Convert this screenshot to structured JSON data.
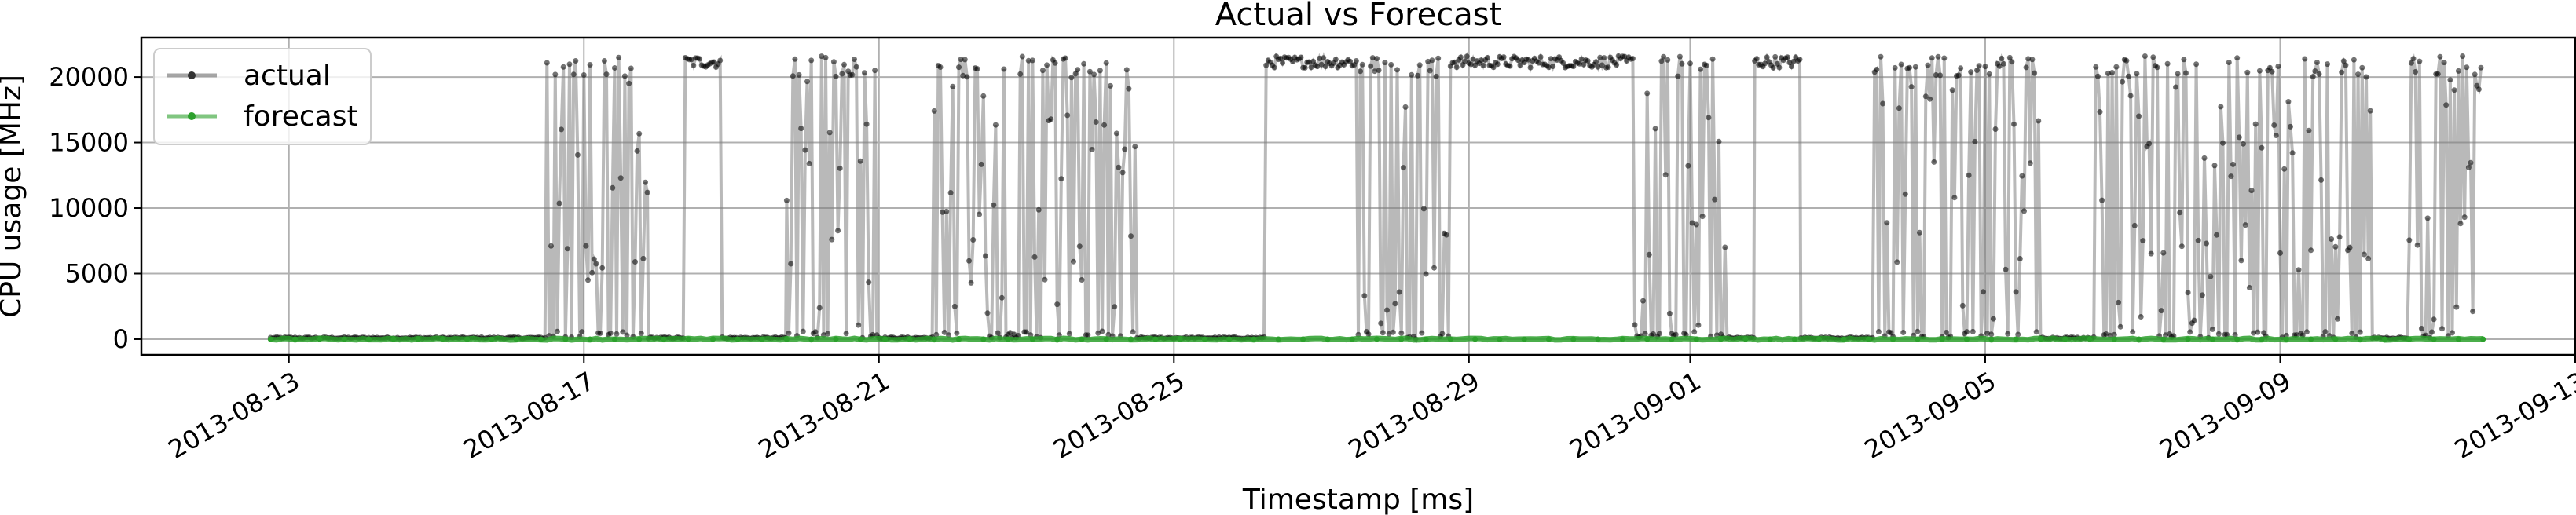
{
  "chart_data": {
    "type": "line",
    "title": "Actual vs Forecast",
    "xlabel": "Timestamp [ms]",
    "ylabel": "CPU usage [MHz]",
    "xlim": [
      "2013-08-11",
      "2013-09-13"
    ],
    "ylim": [
      -1200,
      23000
    ],
    "grid": true,
    "legend": {
      "placement": "top-left"
    },
    "x_ticks": [
      "2013-08-13",
      "2013-08-17",
      "2013-08-21",
      "2013-08-25",
      "2013-08-29",
      "2013-09-01",
      "2013-09-05",
      "2013-09-09",
      "2013-09-13"
    ],
    "y_ticks": [
      0,
      5000,
      10000,
      15000,
      20000
    ],
    "series": [
      {
        "name": "actual",
        "color": "#000000",
        "segments": [
          {
            "start": "2013-08-12 18:00",
            "end": "2013-08-16 12:00",
            "level": "low"
          },
          {
            "start": "2013-08-16 12:00",
            "end": "2013-08-17 21:00",
            "level": "dense"
          },
          {
            "start": "2013-08-17 21:00",
            "end": "2013-08-18 09:00",
            "level": "low"
          },
          {
            "start": "2013-08-18 09:00",
            "end": "2013-08-18 21:00",
            "level": "high"
          },
          {
            "start": "2013-08-18 21:00",
            "end": "2013-08-19 18:00",
            "level": "low"
          },
          {
            "start": "2013-08-19 18:00",
            "end": "2013-08-21 00:00",
            "level": "dense"
          },
          {
            "start": "2013-08-21 00:00",
            "end": "2013-08-21 18:00",
            "level": "low"
          },
          {
            "start": "2013-08-21 18:00",
            "end": "2013-08-24 12:00",
            "level": "dense"
          },
          {
            "start": "2013-08-24 12:00",
            "end": "2013-08-26 06:00",
            "level": "low"
          },
          {
            "start": "2013-08-26 06:00",
            "end": "2013-08-27 12:00",
            "level": "high"
          },
          {
            "start": "2013-08-27 12:00",
            "end": "2013-08-28 18:00",
            "level": "dense"
          },
          {
            "start": "2013-08-28 18:00",
            "end": "2013-08-31 06:00",
            "level": "high"
          },
          {
            "start": "2013-08-31 06:00",
            "end": "2013-09-01 12:00",
            "level": "dense"
          },
          {
            "start": "2013-09-01 12:00",
            "end": "2013-09-01 21:00",
            "level": "low"
          },
          {
            "start": "2013-09-01 21:00",
            "end": "2013-09-02 12:00",
            "level": "high"
          },
          {
            "start": "2013-09-02 12:00",
            "end": "2013-09-03 12:00",
            "level": "low"
          },
          {
            "start": "2013-09-03 12:00",
            "end": "2013-09-05 18:00",
            "level": "dense"
          },
          {
            "start": "2013-09-05 18:00",
            "end": "2013-09-06 12:00",
            "level": "low"
          },
          {
            "start": "2013-09-06 12:00",
            "end": "2013-09-10 06:00",
            "level": "dense"
          },
          {
            "start": "2013-09-10 06:00",
            "end": "2013-09-10 18:00",
            "level": "low"
          },
          {
            "start": "2013-09-10 18:00",
            "end": "2013-09-11 18:00",
            "level": "dense"
          }
        ]
      },
      {
        "name": "forecast",
        "color": "#2ca02c",
        "start": "2013-08-12 18:00",
        "end": "2013-09-11 18:00",
        "typical_value": 0
      }
    ]
  }
}
